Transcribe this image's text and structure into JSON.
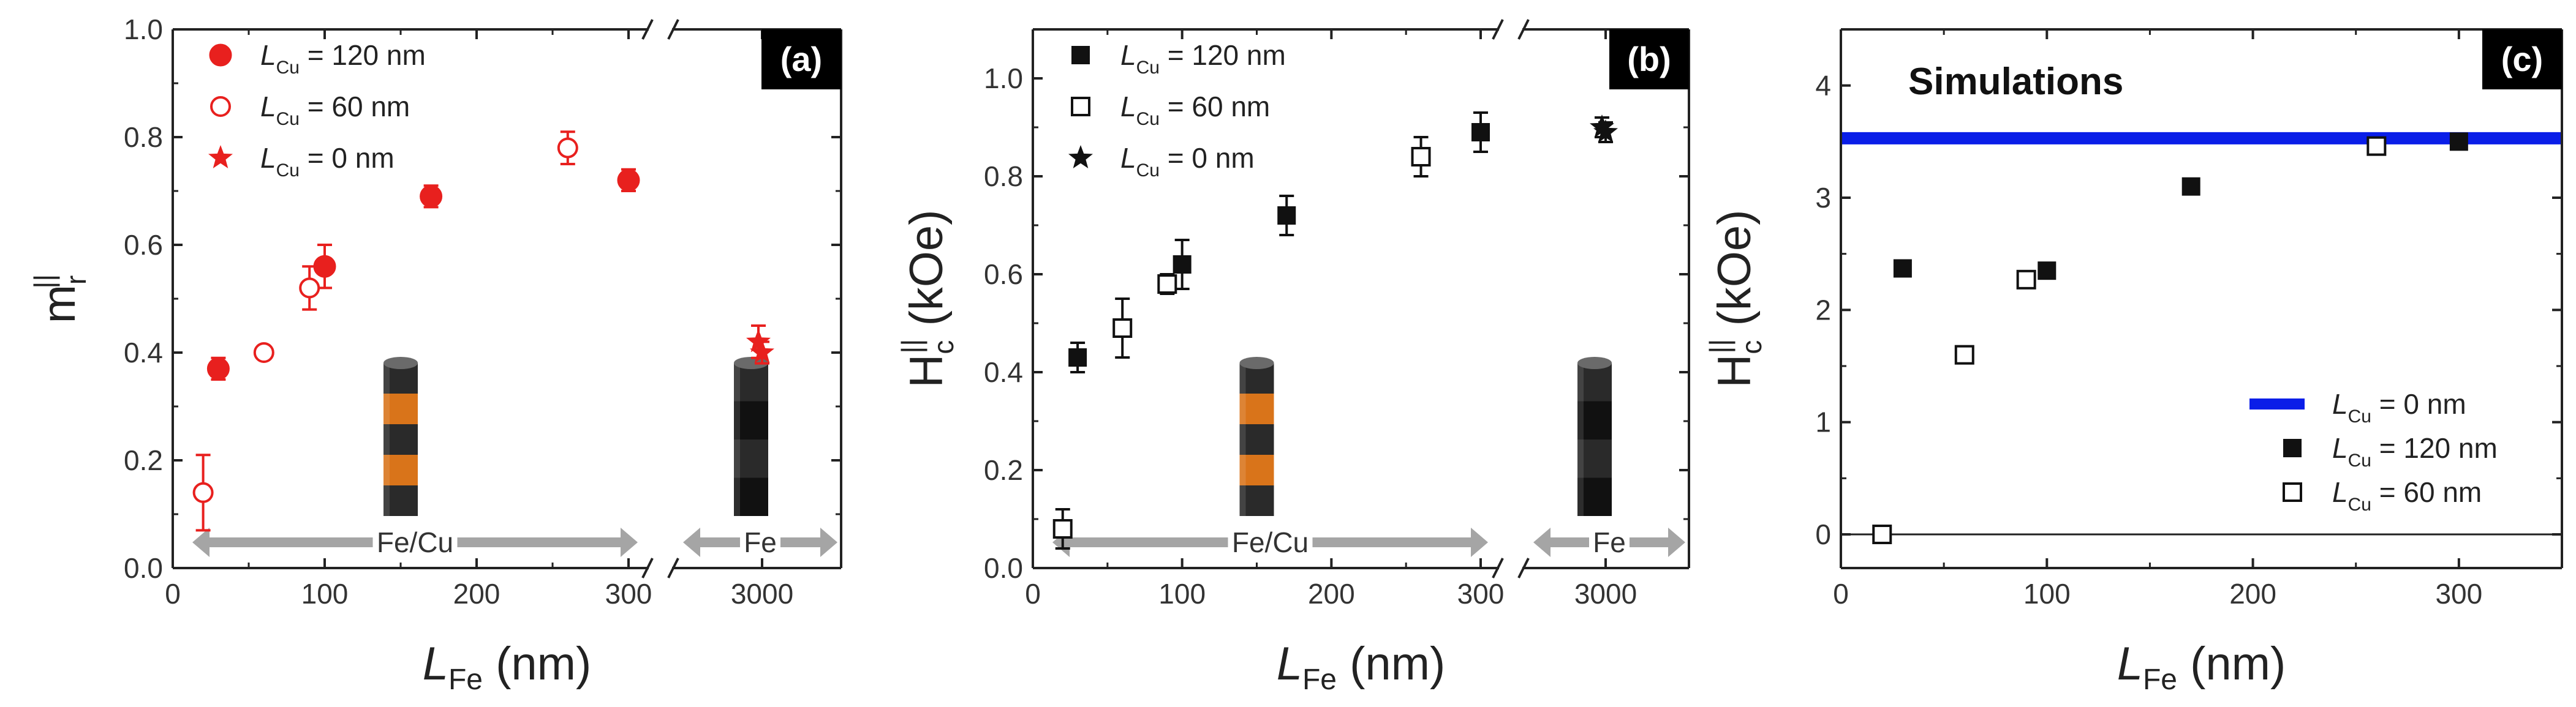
{
  "chart_data": [
    {
      "id": "a",
      "type": "scatter",
      "panel_label": "(a)",
      "color": "#e8201e",
      "xlabel": "L",
      "xlabel_sub": "Fe",
      "xlabel_unit": " (nm)",
      "ylabel": "m",
      "ylabel_sub": "r",
      "ylabel_sup": "||",
      "ylim": [
        0.0,
        1.0
      ],
      "yticks": [
        "0.0",
        "0.2",
        "0.4",
        "0.6",
        "0.8",
        "1.0"
      ],
      "xticks": [
        "0",
        "100",
        "200",
        "300",
        "3000"
      ],
      "axis_break": true,
      "range_labels": [
        "Fe/Cu",
        "Fe"
      ],
      "legend": [
        {
          "prefix": "L",
          "sub": "Cu",
          "text": " = 120 nm",
          "marker": "filled-circle"
        },
        {
          "prefix": "L",
          "sub": "Cu",
          "text": " = 60 nm",
          "marker": "open-circle"
        },
        {
          "prefix": "L",
          "sub": "Cu",
          "text": " = 0 nm",
          "marker": "star"
        }
      ],
      "series": [
        {
          "name": "L_Cu = 120 nm",
          "marker": "filled-circle",
          "points": [
            {
              "x": 30,
              "y": 0.37,
              "err": 0.02
            },
            {
              "x": 100,
              "y": 0.56,
              "err": 0.04
            },
            {
              "x": 170,
              "y": 0.69,
              "err": 0.02
            },
            {
              "x": 300,
              "y": 0.72,
              "err": 0.02
            }
          ]
        },
        {
          "name": "L_Cu = 60 nm",
          "marker": "open-circle",
          "points": [
            {
              "x": 20,
              "y": 0.14,
              "err": 0.07
            },
            {
              "x": 60,
              "y": 0.4,
              "err": 0.01
            },
            {
              "x": 90,
              "y": 0.52,
              "err": 0.04
            },
            {
              "x": 260,
              "y": 0.78,
              "err": 0.03
            }
          ]
        },
        {
          "name": "L_Cu = 0 nm",
          "marker": "star",
          "points": [
            {
              "x": 3000,
              "y": 0.42,
              "err": 0.03
            },
            {
              "x": 3000,
              "y": 0.4,
              "err": 0.02
            }
          ]
        }
      ]
    },
    {
      "id": "b",
      "type": "scatter",
      "panel_label": "(b)",
      "color": "#111111",
      "xlabel": "L",
      "xlabel_sub": "Fe",
      "xlabel_unit": " (nm)",
      "ylabel": "H",
      "ylabel_sub": "c",
      "ylabel_sup": "||",
      "ylabel_unit": " (kOe)",
      "ylim": [
        0.0,
        1.1
      ],
      "yticks": [
        "0.0",
        "0.2",
        "0.4",
        "0.6",
        "0.8",
        "1.0"
      ],
      "xticks": [
        "0",
        "100",
        "200",
        "300",
        "3000"
      ],
      "axis_break": true,
      "range_labels": [
        "Fe/Cu",
        "Fe"
      ],
      "legend": [
        {
          "prefix": "L",
          "sub": "Cu",
          "text": " = 120 nm",
          "marker": "filled-square"
        },
        {
          "prefix": "L",
          "sub": "Cu",
          "text": " = 60 nm",
          "marker": "open-square"
        },
        {
          "prefix": "L",
          "sub": "Cu",
          "text": " = 0 nm",
          "marker": "star"
        }
      ],
      "series": [
        {
          "name": "L_Cu = 120 nm",
          "marker": "filled-square",
          "points": [
            {
              "x": 30,
              "y": 0.43,
              "err": 0.03
            },
            {
              "x": 100,
              "y": 0.62,
              "err": 0.05
            },
            {
              "x": 170,
              "y": 0.72,
              "err": 0.04
            },
            {
              "x": 300,
              "y": 0.89,
              "err": 0.04
            }
          ]
        },
        {
          "name": "L_Cu = 60 nm",
          "marker": "open-square",
          "points": [
            {
              "x": 20,
              "y": 0.08,
              "err": 0.04
            },
            {
              "x": 60,
              "y": 0.49,
              "err": 0.06
            },
            {
              "x": 90,
              "y": 0.58,
              "err": 0.02
            },
            {
              "x": 260,
              "y": 0.84,
              "err": 0.04
            }
          ]
        },
        {
          "name": "L_Cu = 0 nm",
          "marker": "star",
          "points": [
            {
              "x": 3000,
              "y": 0.9,
              "err": 0.02
            },
            {
              "x": 3000,
              "y": 0.89,
              "err": 0.02
            }
          ]
        }
      ]
    },
    {
      "id": "c",
      "type": "scatter",
      "panel_label": "(c)",
      "annotation": "Simulations",
      "color": "#111111",
      "hline_color": "#0a1ee8",
      "xlabel": "L",
      "xlabel_sub": "Fe",
      "xlabel_unit": " (nm)",
      "ylabel": "H",
      "ylabel_sub": "c",
      "ylabel_sup": "||",
      "ylabel_unit": " (kOe)",
      "xlim": [
        0,
        350
      ],
      "ylim": [
        -0.3,
        4.5
      ],
      "yticks": [
        "0",
        "1",
        "2",
        "3",
        "4"
      ],
      "xticks": [
        "0",
        "100",
        "200",
        "300"
      ],
      "zero_line": true,
      "legend": [
        {
          "prefix": "L",
          "sub": "Cu",
          "text": " = 0 nm",
          "marker": "blue-line"
        },
        {
          "prefix": "L",
          "sub": "Cu",
          "text": " = 120 nm",
          "marker": "filled-square"
        },
        {
          "prefix": "L",
          "sub": "Cu",
          "text": " = 60 nm",
          "marker": "open-square"
        }
      ],
      "hline": {
        "name": "L_Cu = 0 nm",
        "y": 3.53
      },
      "series": [
        {
          "name": "L_Cu = 120 nm",
          "marker": "filled-square",
          "points": [
            {
              "x": 30,
              "y": 2.37
            },
            {
              "x": 100,
              "y": 2.35
            },
            {
              "x": 170,
              "y": 3.1
            },
            {
              "x": 300,
              "y": 3.5
            }
          ]
        },
        {
          "name": "L_Cu = 60 nm",
          "marker": "open-square",
          "points": [
            {
              "x": 20,
              "y": 0.0
            },
            {
              "x": 60,
              "y": 1.6
            },
            {
              "x": 90,
              "y": 2.27
            },
            {
              "x": 260,
              "y": 3.46
            }
          ]
        }
      ]
    }
  ]
}
